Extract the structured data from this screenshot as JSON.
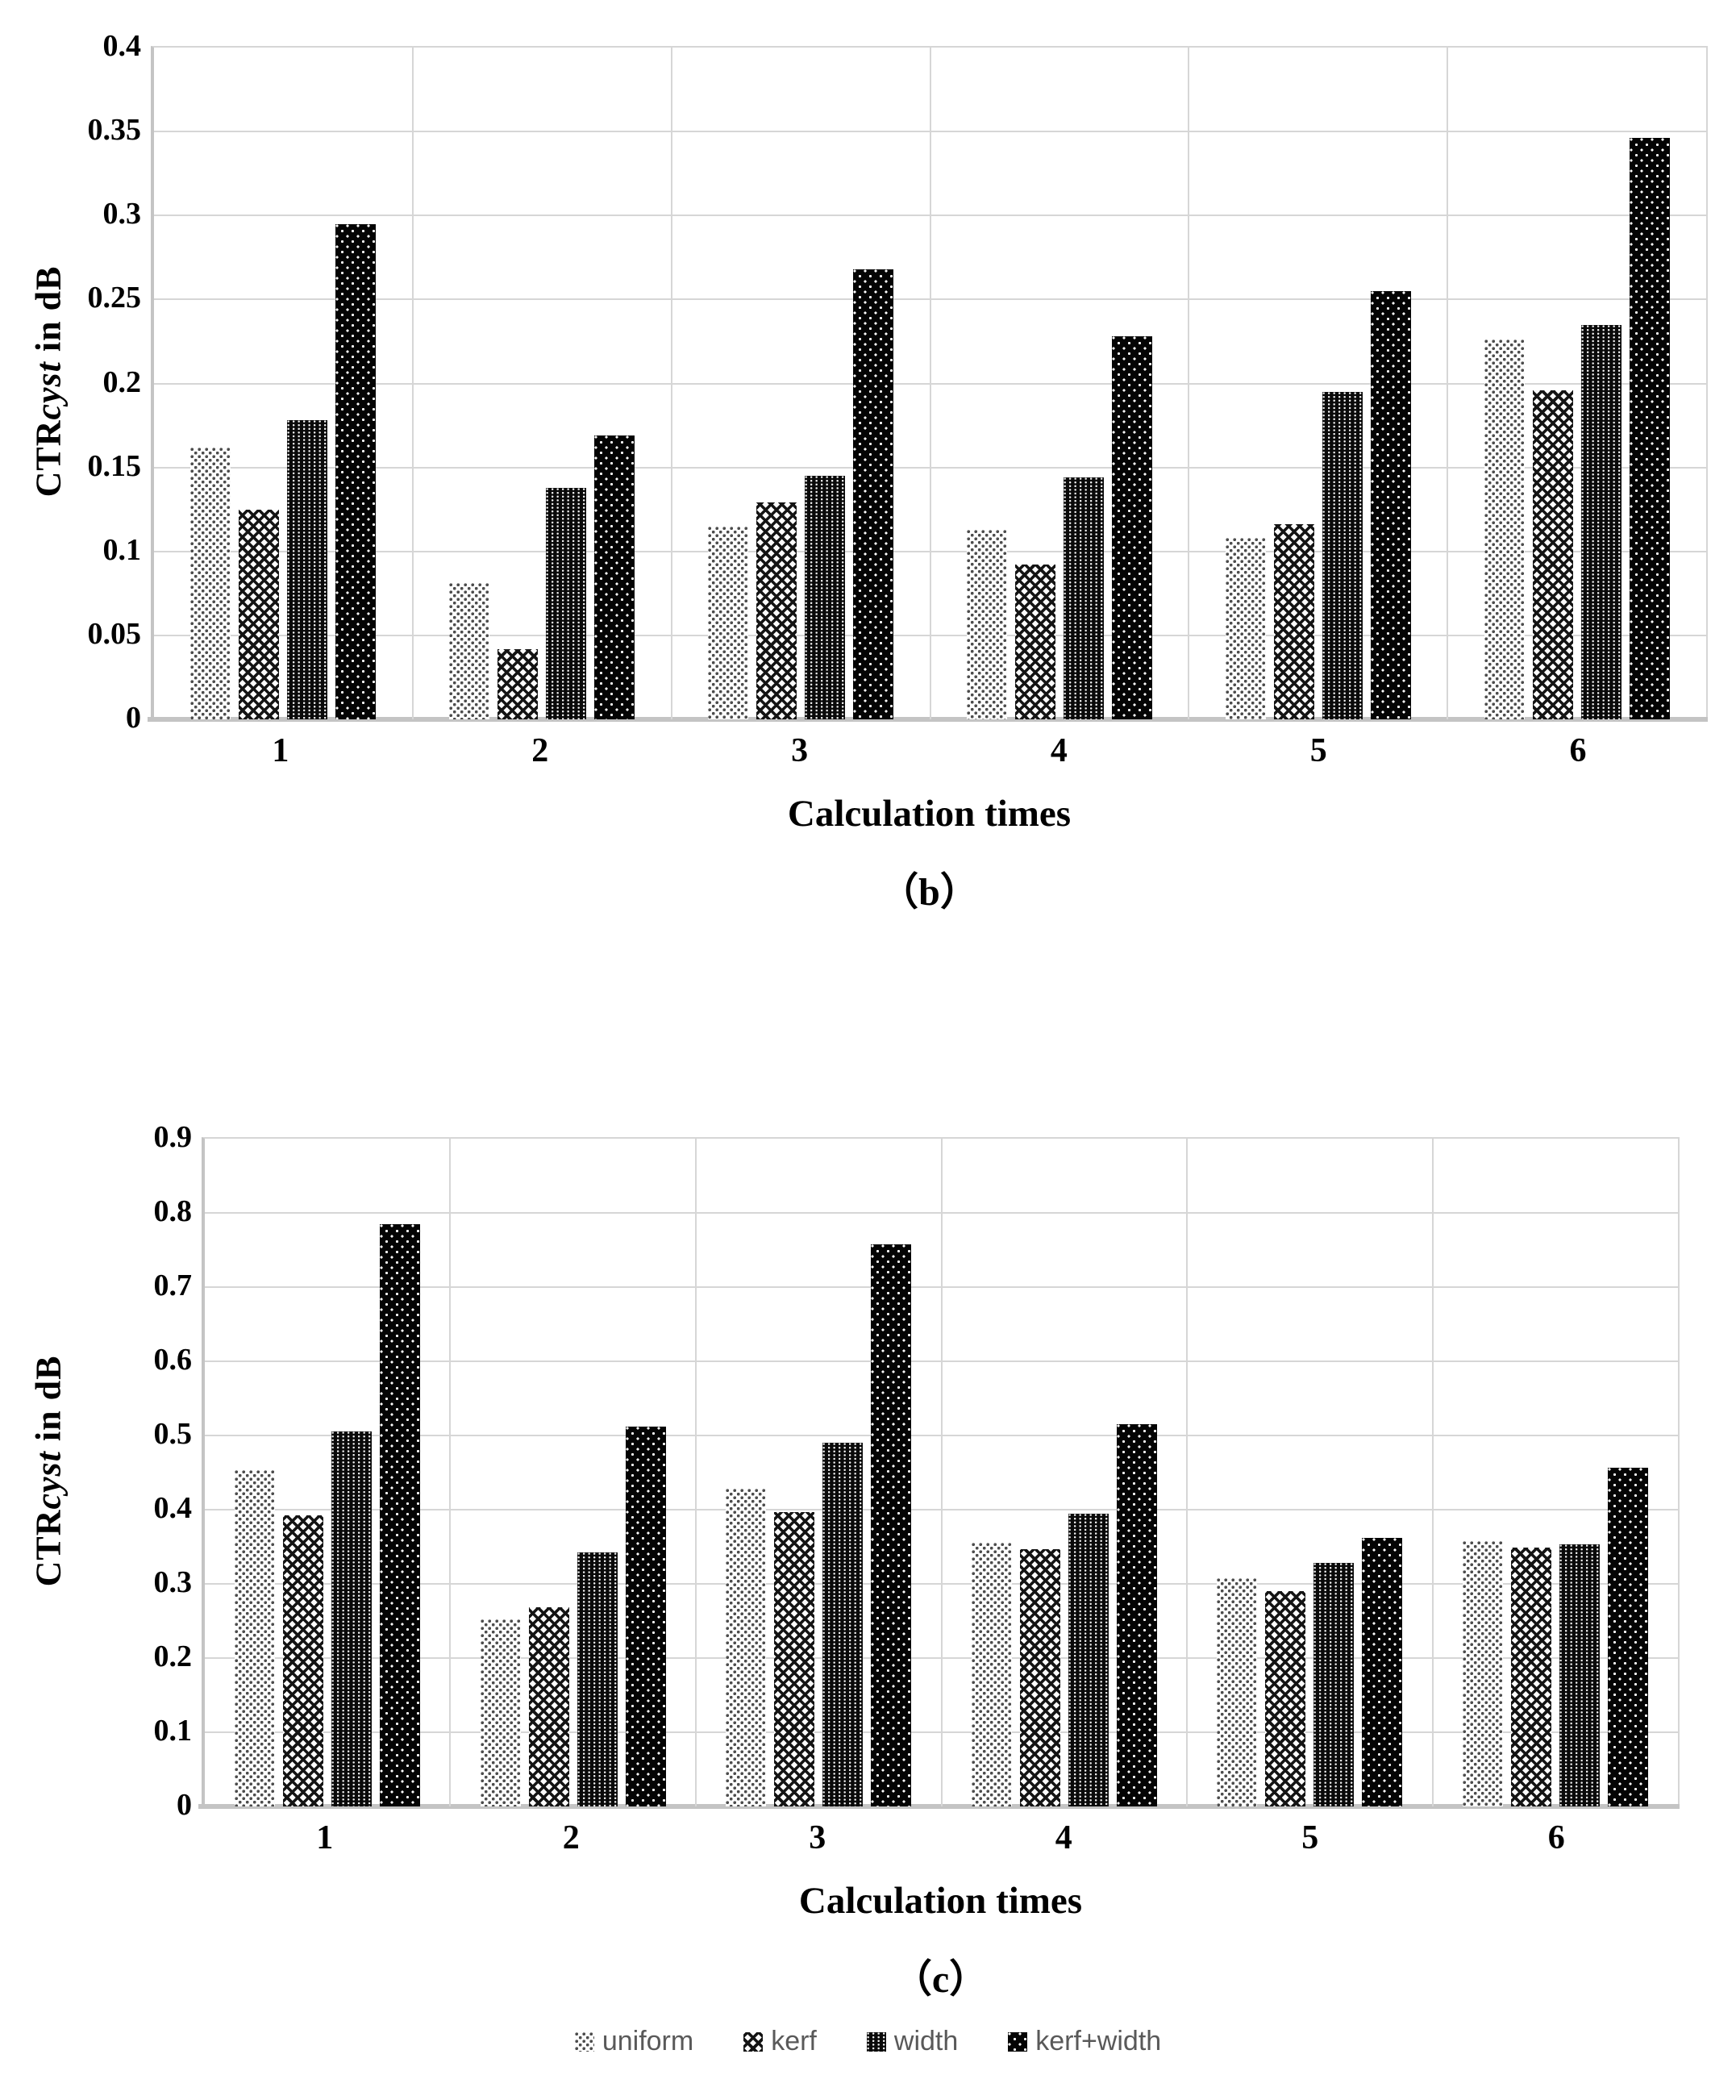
{
  "figure": {
    "background": "#ffffff",
    "colors": {
      "gridline": "#d6d6d6",
      "axis_line": "#c4c4c4",
      "tick_text": "#000000",
      "legend_text": "#595959",
      "bar_dark": "#000000",
      "bar_gray": "#4c4c4c"
    }
  },
  "legend": {
    "items": [
      {
        "label": "uniform",
        "pattern": "uniform",
        "swatch": "gray-dot-checker-icon"
      },
      {
        "label": "kerf",
        "pattern": "kerf",
        "swatch": "diagonal-crosshatch-icon"
      },
      {
        "label": "width",
        "pattern": "width",
        "swatch": "vertical-dotted-black-icon"
      },
      {
        "label": "kerf+width",
        "pattern": "kerfwidth",
        "swatch": "black-white-dot-icon"
      }
    ]
  },
  "chart_data": [
    {
      "type": "bar",
      "panel": "b",
      "caption": "（b）",
      "xlabel": "Calculation times",
      "ylabel": "CTRcyst in dB",
      "ylabel_prefix": "CTR",
      "ylabel_italic": "cyst",
      "ylabel_suffix": " in dB",
      "ylim": [
        0,
        0.4
      ],
      "ytick_step": 0.05,
      "yticks": [
        "0.4",
        "0.35",
        "0.3",
        "0.25",
        "0.2",
        "0.15",
        "0.1",
        "0.05",
        "0"
      ],
      "categories": [
        "1",
        "2",
        "3",
        "4",
        "5",
        "6"
      ],
      "grid": true,
      "legend_position": "shared-below-figure",
      "series": [
        {
          "name": "uniform",
          "pattern": "uniform",
          "values": [
            0.162,
            0.081,
            0.115,
            0.113,
            0.108,
            0.226
          ]
        },
        {
          "name": "kerf",
          "pattern": "kerf",
          "values": [
            0.125,
            0.042,
            0.129,
            0.092,
            0.116,
            0.196
          ]
        },
        {
          "name": "width",
          "pattern": "width",
          "values": [
            0.178,
            0.138,
            0.145,
            0.144,
            0.195,
            0.235
          ]
        },
        {
          "name": "kerf+width",
          "pattern": "kerfwidth",
          "values": [
            0.295,
            0.169,
            0.268,
            0.228,
            0.255,
            0.346
          ]
        }
      ]
    },
    {
      "type": "bar",
      "panel": "c",
      "caption": "（c）",
      "xlabel": "Calculation times",
      "ylabel": "CTRcyst in dB",
      "ylabel_prefix": "CTR",
      "ylabel_italic": "cyst",
      "ylabel_suffix": " in dB",
      "ylim": [
        0,
        0.9
      ],
      "ytick_step": 0.1,
      "yticks": [
        "0.9",
        "0.8",
        "0.7",
        "0.6",
        "0.5",
        "0.4",
        "0.3",
        "0.2",
        "0.1",
        "0"
      ],
      "categories": [
        "1",
        "2",
        "3",
        "4",
        "5",
        "6"
      ],
      "grid": true,
      "legend_position": "shared-below-figure",
      "series": [
        {
          "name": "uniform",
          "pattern": "uniform",
          "values": [
            0.453,
            0.252,
            0.428,
            0.355,
            0.308,
            0.358
          ]
        },
        {
          "name": "kerf",
          "pattern": "kerf",
          "values": [
            0.392,
            0.268,
            0.397,
            0.347,
            0.29,
            0.349
          ]
        },
        {
          "name": "width",
          "pattern": "width",
          "values": [
            0.505,
            0.342,
            0.49,
            0.395,
            0.328,
            0.353
          ]
        },
        {
          "name": "kerf+width",
          "pattern": "kerfwidth",
          "values": [
            0.785,
            0.512,
            0.758,
            0.515,
            0.362,
            0.457
          ]
        }
      ]
    }
  ]
}
